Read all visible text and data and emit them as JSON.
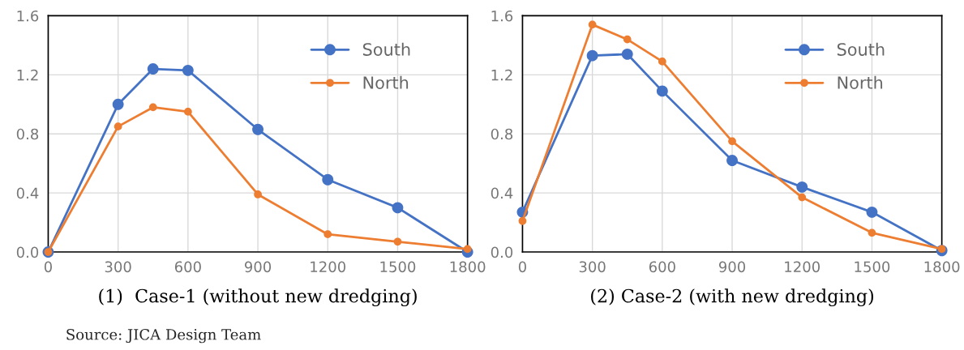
{
  "chart_data": [
    {
      "type": "line",
      "xlabel": "(1)  Case-1 (without new dredging)",
      "x": [
        0,
        300,
        450,
        600,
        900,
        1200,
        1500,
        1800
      ],
      "series": [
        {
          "name": "South",
          "color": "#4472c4",
          "values": [
            0,
            1.0,
            1.24,
            1.23,
            0.83,
            0.49,
            0.3,
            0.0
          ]
        },
        {
          "name": "North",
          "color": "#ed7d31",
          "values": [
            0,
            0.85,
            0.98,
            0.95,
            0.39,
            0.12,
            0.07,
            0.02
          ]
        }
      ],
      "xlim": [
        0,
        1800
      ],
      "xticks": [
        0,
        300,
        600,
        900,
        1200,
        1500,
        1800
      ],
      "ylim": [
        0,
        1.6
      ],
      "yticks": [
        {
          "value": 0,
          "label": "0.0"
        },
        0.4,
        0.8,
        1.2,
        1.6
      ],
      "grid": true,
      "legend": "top right",
      "marker": "circle",
      "line_style": "solid",
      "annotations": [
        "Source: JICA Design Team"
      ]
    },
    {
      "type": "line",
      "xlabel": "(2) Case-2 (with new dredging)",
      "x": [
        0,
        300,
        450,
        600,
        900,
        1200,
        1500,
        1800
      ],
      "series": [
        {
          "name": "South",
          "color": "#4472c4",
          "values": [
            0.27,
            1.33,
            1.34,
            1.09,
            0.62,
            0.44,
            0.27,
            0.01
          ]
        },
        {
          "name": "North",
          "color": "#ed7d31",
          "values": [
            0.21,
            1.54,
            1.44,
            1.29,
            0.75,
            0.37,
            0.13,
            0.02
          ]
        }
      ],
      "xlim": [
        0,
        1800
      ],
      "xticks": [
        0,
        300,
        600,
        900,
        1200,
        1500,
        1800
      ],
      "ylim": [
        0,
        1.6
      ],
      "yticks": [
        {
          "value": 0,
          "label": "0.0"
        },
        0.4,
        0.8,
        1.2,
        1.6
      ],
      "grid": true,
      "legend": "top right",
      "marker": "circle",
      "line_style": "solid"
    }
  ]
}
